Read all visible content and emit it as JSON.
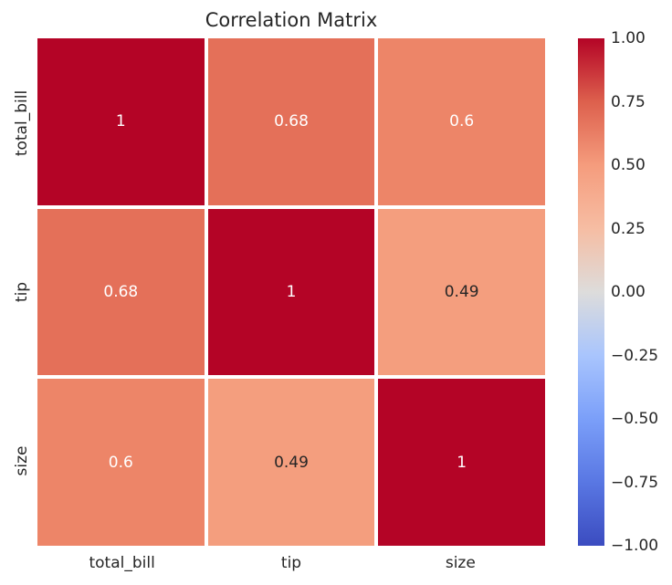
{
  "page": {
    "background_color": "#ffffff",
    "text_color": "#262626"
  },
  "chart_data": {
    "type": "heatmap",
    "title": "Correlation Matrix",
    "categories": [
      "total_bill",
      "tip",
      "size"
    ],
    "matrix": [
      [
        1.0,
        0.68,
        0.6
      ],
      [
        0.68,
        1.0,
        0.49
      ],
      [
        0.6,
        0.49,
        1.0
      ]
    ],
    "cell_labels": [
      [
        "1",
        "0.68",
        "0.6"
      ],
      [
        "0.68",
        "1",
        "0.49"
      ],
      [
        "0.6",
        "0.49",
        "1"
      ]
    ],
    "cell_colors": [
      [
        "#b40426",
        "#e47059",
        "#ed8568"
      ],
      [
        "#e47059",
        "#b40426",
        "#f49e7e"
      ],
      [
        "#ed8568",
        "#f49e7e",
        "#b40426"
      ]
    ],
    "cell_text_colors": [
      [
        "#ffffff",
        "#ffffff",
        "#ffffff"
      ],
      [
        "#ffffff",
        "#ffffff",
        "#262626"
      ],
      [
        "#ffffff",
        "#262626",
        "#ffffff"
      ]
    ],
    "colormap": "coolwarm",
    "vmin": -1.0,
    "vmax": 1.0,
    "grid_line_color": "#ffffff",
    "legend_position": "right",
    "colorbar": {
      "ticks": [
        "1.00",
        "0.75",
        "0.50",
        "0.25",
        "0.00",
        "−0.25",
        "−0.50",
        "−0.75",
        "−1.00"
      ],
      "gradient_stops_top_to_bottom": [
        "#b40426",
        "#dd604d",
        "#f59c7d",
        "#f6bda3",
        "#dddcdb",
        "#a9c5fd",
        "#7b9ff9",
        "#5977e3",
        "#3b4cc0"
      ]
    }
  }
}
